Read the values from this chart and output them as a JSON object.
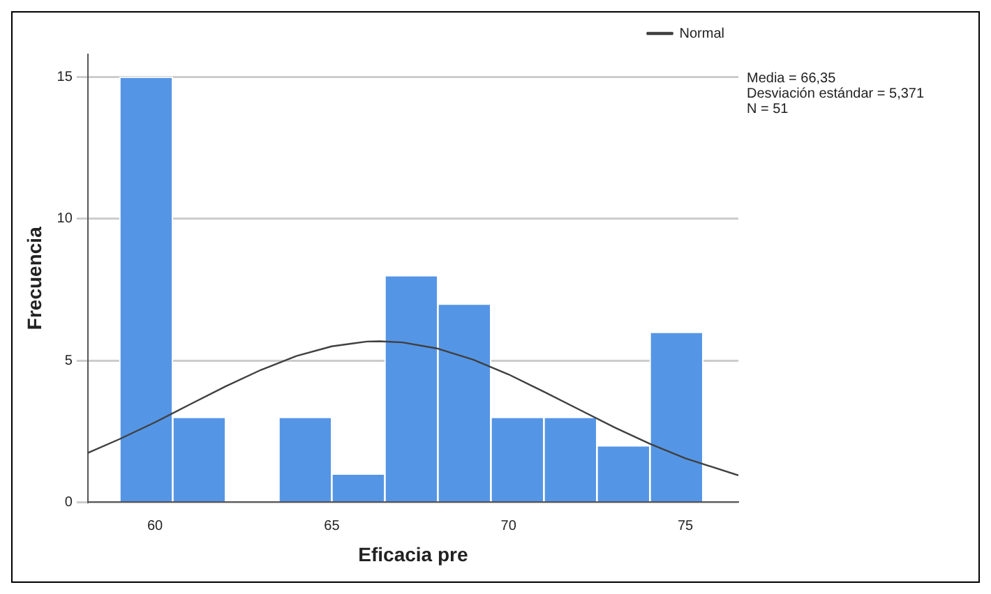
{
  "chart_data": {
    "type": "histogram",
    "xlabel": "Eficacia pre",
    "ylabel": "Frecuencia",
    "bins": [
      59,
      60.5,
      62,
      63.5,
      65,
      66.5,
      68,
      69.5,
      71,
      72.5,
      74,
      75.5
    ],
    "values": [
      15,
      3,
      0,
      3,
      1,
      8,
      7,
      3,
      3,
      2,
      6
    ],
    "color": "#5595e5",
    "series": [
      {
        "type": "line",
        "name": "Normal",
        "color": "#404040",
        "x": [
          58.1,
          59,
          60,
          61,
          62,
          63,
          64,
          65,
          66,
          66.35,
          67,
          68,
          69,
          70,
          71,
          72,
          73,
          74,
          75,
          76.5
        ],
        "values": [
          1.74,
          2.23,
          2.82,
          3.46,
          4.09,
          4.67,
          5.16,
          5.5,
          5.67,
          5.68,
          5.64,
          5.42,
          5.03,
          4.51,
          3.9,
          3.27,
          2.64,
          2.06,
          1.55,
          0.95
        ]
      }
    ],
    "xlim": [
      58.1,
      76.5
    ],
    "xticks": [
      60,
      65,
      70,
      75
    ],
    "ylim": [
      0,
      15.8
    ],
    "yticks": [
      0,
      5,
      10,
      15
    ],
    "grid": "y",
    "legend": "top right",
    "annotations": [
      "Media = 66,35",
      "Desviación estándar = 5,371",
      "N = 51"
    ]
  }
}
